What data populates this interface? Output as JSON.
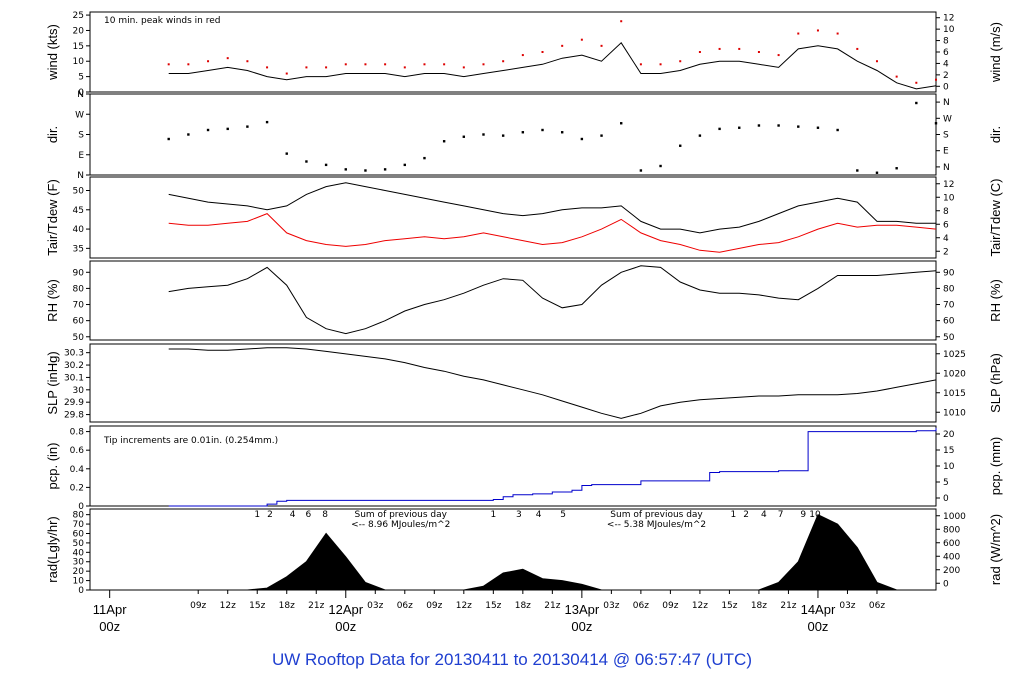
{
  "title": "UW Rooftop Data for 20130411  to  20130414 @ 06:57:47  (UTC)",
  "colors": {
    "title": "#1f3fd0",
    "peak": "#dd0000",
    "dew": "#ee0000",
    "pcp": "#0000cc",
    "purple": "#9900cc",
    "date": "#cc0000"
  },
  "chart_data": [
    {
      "type": "line",
      "panel": "wind",
      "ylabel_left": "wind (kts)",
      "ylabel_right": "wind (m/s)",
      "annotation": "10 min. peak winds in red",
      "ylim": [
        0,
        26
      ],
      "yticks": [
        0,
        5,
        10,
        15,
        20,
        25
      ],
      "right_ylim": [
        0,
        13.4
      ],
      "right_yticks": [
        0,
        2,
        4,
        6,
        8,
        10,
        12
      ],
      "x": [
        0,
        2,
        4,
        6,
        8,
        10,
        12,
        14,
        16,
        18,
        20,
        22,
        24,
        26,
        28,
        30,
        32,
        34,
        36,
        38,
        40,
        42,
        44,
        46,
        48,
        50,
        52,
        54,
        56,
        58,
        60,
        62,
        64,
        66,
        68,
        70,
        72,
        74,
        76,
        78
      ],
      "series": [
        {
          "values": [
            6,
            6,
            7,
            8,
            7,
            5,
            4,
            5,
            5,
            6,
            6,
            6,
            5,
            6,
            6,
            5,
            6,
            7,
            8,
            9,
            11,
            12,
            10,
            16,
            6,
            6,
            7,
            9,
            10,
            10,
            9,
            8,
            14,
            15,
            14,
            10,
            7,
            3,
            1,
            2
          ]
        },
        {
          "values": [
            9,
            9,
            10,
            11,
            10,
            8,
            6,
            8,
            8,
            9,
            9,
            9,
            8,
            9,
            9,
            8,
            9,
            10,
            12,
            13,
            15,
            17,
            15,
            23,
            9,
            9,
            10,
            13,
            14,
            14,
            13,
            12,
            19,
            20,
            19,
            14,
            10,
            5,
            3,
            4
          ]
        }
      ]
    },
    {
      "type": "scatter",
      "panel": "dir",
      "ylabel_left": "dir.",
      "ylabel_right": "dir.",
      "yticks": [
        "N",
        "E",
        "S",
        "W",
        "N"
      ],
      "ylim": [
        0,
        360
      ],
      "x": [
        0,
        2,
        4,
        6,
        8,
        10,
        12,
        14,
        16,
        18,
        20,
        22,
        24,
        26,
        28,
        30,
        32,
        34,
        36,
        38,
        40,
        42,
        44,
        46,
        48,
        50,
        52,
        54,
        56,
        58,
        60,
        62,
        64,
        66,
        68,
        70,
        72,
        74,
        76,
        78
      ],
      "values": [
        160,
        180,
        200,
        205,
        215,
        235,
        95,
        60,
        45,
        25,
        20,
        25,
        45,
        75,
        150,
        170,
        180,
        175,
        190,
        200,
        190,
        160,
        175,
        230,
        20,
        40,
        130,
        175,
        205,
        210,
        220,
        220,
        215,
        210,
        200,
        20,
        10,
        30,
        320,
        230
      ]
    },
    {
      "type": "line",
      "panel": "temperature",
      "ylabel_left": "Tair/Tdew (F)",
      "ylabel_right": "Tair/Tdew (C)",
      "ylim": [
        32.5,
        53.5
      ],
      "yticks": [
        35,
        40,
        45,
        50
      ],
      "right_yticks": [
        2,
        4,
        6,
        8,
        10,
        12
      ],
      "x": [
        0,
        2,
        4,
        6,
        8,
        10,
        12,
        14,
        16,
        18,
        20,
        22,
        24,
        26,
        28,
        30,
        32,
        34,
        36,
        38,
        40,
        42,
        44,
        46,
        48,
        50,
        52,
        54,
        56,
        58,
        60,
        62,
        64,
        66,
        68,
        70,
        72,
        74,
        76,
        78
      ],
      "series": [
        {
          "values": [
            49,
            48,
            47,
            46.5,
            46,
            45,
            46,
            49,
            51,
            52,
            51,
            50,
            49,
            48,
            47,
            46,
            45,
            44,
            43.5,
            44,
            45,
            45.5,
            45.5,
            46,
            42,
            40,
            40,
            39,
            40,
            40.5,
            42,
            44,
            46,
            47,
            48,
            47,
            42,
            42,
            41.5,
            41.5
          ]
        },
        {
          "values": [
            41.5,
            41,
            41,
            41.5,
            42,
            44,
            39,
            37,
            36,
            35.5,
            36,
            37,
            37.5,
            38,
            37.5,
            38,
            39,
            38,
            37,
            36,
            36.5,
            38,
            40,
            42.5,
            39,
            37,
            36,
            34.5,
            34,
            35,
            36,
            36.5,
            38,
            40,
            41.5,
            40.5,
            41,
            41,
            40.5,
            40
          ]
        }
      ]
    },
    {
      "type": "line",
      "panel": "rh",
      "ylabel_left": "RH (%)",
      "ylabel_right": "RH (%)",
      "ylim": [
        48,
        97
      ],
      "yticks": [
        50,
        60,
        70,
        80,
        90
      ],
      "x": [
        0,
        2,
        4,
        6,
        8,
        10,
        12,
        14,
        16,
        18,
        20,
        22,
        24,
        26,
        28,
        30,
        32,
        34,
        36,
        38,
        40,
        42,
        44,
        46,
        48,
        50,
        52,
        54,
        56,
        58,
        60,
        62,
        64,
        66,
        68,
        70,
        72,
        74,
        76,
        78
      ],
      "values": [
        78,
        80,
        81,
        82,
        86,
        93,
        82,
        62,
        55,
        52,
        55,
        60,
        66,
        70,
        73,
        77,
        82,
        86,
        85,
        74,
        68,
        70,
        82,
        90,
        94,
        93,
        84,
        79,
        77,
        77,
        76,
        74,
        73,
        80,
        88,
        88,
        88,
        89,
        90,
        91
      ]
    },
    {
      "type": "line",
      "panel": "slp",
      "ylabel_left": "SLP (inHg)",
      "ylabel_right": "SLP (hPa)",
      "ylim": [
        29.74,
        30.37
      ],
      "yticks": [
        29.8,
        29.9,
        30.0,
        30.1,
        30.2,
        30.3
      ],
      "right_yticks": [
        1010,
        1015,
        1020,
        1025
      ],
      "x": [
        0,
        2,
        4,
        6,
        8,
        10,
        12,
        14,
        16,
        18,
        20,
        22,
        24,
        26,
        28,
        30,
        32,
        34,
        36,
        38,
        40,
        42,
        44,
        46,
        48,
        50,
        52,
        54,
        56,
        58,
        60,
        62,
        64,
        66,
        68,
        70,
        72,
        74,
        76,
        78
      ],
      "values": [
        30.33,
        30.33,
        30.32,
        30.32,
        30.33,
        30.34,
        30.34,
        30.33,
        30.31,
        30.29,
        30.27,
        30.25,
        30.22,
        30.18,
        30.15,
        30.11,
        30.08,
        30.04,
        30.0,
        29.96,
        29.91,
        29.86,
        29.81,
        29.77,
        29.81,
        29.87,
        29.9,
        29.92,
        29.93,
        29.94,
        29.95,
        29.95,
        29.96,
        29.96,
        29.96,
        29.97,
        29.99,
        30.02,
        30.05,
        30.08
      ]
    },
    {
      "type": "line",
      "panel": "pcp",
      "ylabel_left": "pcp. (in)",
      "ylabel_right": "pcp. (mm)",
      "annotation": "Tip increments are 0.01in. (0.254mm.)",
      "ylim": [
        0,
        0.86
      ],
      "yticks": [
        0.0,
        0.2,
        0.4,
        0.6,
        0.8
      ],
      "right_yticks": [
        0,
        5,
        10,
        15,
        20
      ],
      "x": [
        0,
        9,
        10,
        11,
        12,
        22,
        24,
        27,
        29,
        31,
        32,
        33,
        34,
        35,
        37,
        39,
        41,
        42,
        43,
        48,
        55,
        56,
        57,
        58,
        59,
        60,
        62,
        64,
        65,
        67,
        68,
        70,
        72,
        74,
        76,
        78
      ],
      "values": [
        0.0,
        0.0,
        0.02,
        0.05,
        0.06,
        0.06,
        0.06,
        0.06,
        0.06,
        0.06,
        0.06,
        0.07,
        0.1,
        0.12,
        0.13,
        0.15,
        0.17,
        0.22,
        0.23,
        0.27,
        0.36,
        0.37,
        0.37,
        0.37,
        0.37,
        0.37,
        0.38,
        0.38,
        0.8,
        0.8,
        0.8,
        0.8,
        0.8,
        0.8,
        0.81,
        0.84
      ]
    },
    {
      "type": "area",
      "panel": "rad",
      "ylabel_left": "rad(Lgly/hr)",
      "ylabel_right": "rad (W/m^2)",
      "ylim": [
        0,
        86
      ],
      "yticks": [
        0,
        10,
        20,
        30,
        40,
        50,
        60,
        70,
        80
      ],
      "right_yticks": [
        0,
        200,
        400,
        600,
        800,
        1000
      ],
      "annotations": [
        {
          "text": "Sum of previous day",
          "at": 18
        },
        {
          "text": "<-- 8.96 MJoules/m^2",
          "at": 18
        },
        {
          "text": "Sum of previous day",
          "at": 44
        },
        {
          "text": "<-- 5.38 MJoules/m^2",
          "at": 44
        }
      ],
      "x": [
        0,
        2,
        4,
        6,
        8,
        10,
        12,
        14,
        16,
        18,
        20,
        22,
        24,
        26,
        28,
        30,
        32,
        34,
        36,
        38,
        40,
        42,
        44,
        46,
        48,
        50,
        52,
        54,
        56,
        58,
        60,
        62,
        64,
        66,
        68,
        70,
        72,
        74,
        76,
        78
      ],
      "values": [
        0,
        0,
        0,
        0,
        0,
        2,
        14,
        30,
        60,
        35,
        8,
        0,
        0,
        0,
        0,
        0,
        4,
        18,
        22,
        12,
        10,
        6,
        0,
        0,
        0,
        0,
        0,
        0,
        0,
        0,
        0,
        8,
        30,
        80,
        70,
        45,
        8,
        0,
        0,
        0
      ]
    }
  ],
  "hour_labels": [
    {
      "label": "09z",
      "at": 3
    },
    {
      "label": "12z",
      "at": 6
    },
    {
      "label": "15z",
      "at": 9
    },
    {
      "label": "18z",
      "at": 12
    },
    {
      "label": "21z",
      "at": 15
    },
    {
      "label": "03z",
      "at": 21
    },
    {
      "label": "06z",
      "at": 24
    },
    {
      "label": "09z",
      "at": 27
    },
    {
      "label": "12z",
      "at": 30
    },
    {
      "label": "15z",
      "at": 33
    },
    {
      "label": "18z",
      "at": 36
    },
    {
      "label": "21z",
      "at": 39
    },
    {
      "label": "03z",
      "at": 45
    },
    {
      "label": "06z",
      "at": 48
    },
    {
      "label": "09z",
      "at": 51
    },
    {
      "label": "12z",
      "at": 54
    },
    {
      "label": "15z",
      "at": 57
    },
    {
      "label": "18z",
      "at": 60
    },
    {
      "label": "21z",
      "at": 63
    },
    {
      "label": "03z",
      "at": 69
    },
    {
      "label": "06z",
      "at": 72
    }
  ],
  "date_labels": [
    {
      "day": "11Apr",
      "hour": "00z",
      "at": -6
    },
    {
      "day": "12Apr",
      "hour": "00z",
      "at": 18
    },
    {
      "day": "13Apr",
      "hour": "00z",
      "at": 42
    },
    {
      "day": "14Apr",
      "hour": "00z",
      "at": 66
    }
  ],
  "hour_markers": [
    {
      "label": "1",
      "at": 9
    },
    {
      "label": "2",
      "at": 10.3
    },
    {
      "label": "4",
      "at": 12.6
    },
    {
      "label": "6",
      "at": 14.2
    },
    {
      "label": "8",
      "at": 15.9
    },
    {
      "label": "1",
      "at": 33
    },
    {
      "label": "3",
      "at": 35.6
    },
    {
      "label": "4",
      "at": 37.6
    },
    {
      "label": "5",
      "at": 40.1
    },
    {
      "label": "1",
      "at": 57.4
    },
    {
      "label": "2",
      "at": 58.7
    },
    {
      "label": "4",
      "at": 60.5
    },
    {
      "label": "7",
      "at": 62.2
    },
    {
      "label": "9",
      "at": 64.5
    },
    {
      "label": "10",
      "at": 65.7
    }
  ]
}
